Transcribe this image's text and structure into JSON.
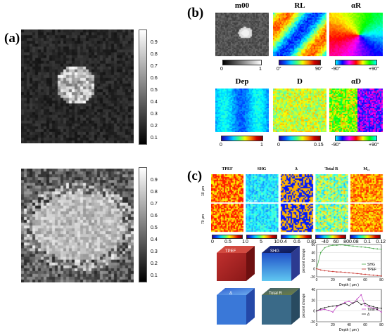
{
  "panel_a": {
    "letter": "(a)",
    "colorbar_ticks": [
      "0.9",
      "0.8",
      "0.7",
      "0.6",
      "0.5",
      "0.4",
      "0.3",
      "0.2",
      "0.1"
    ]
  },
  "panel_b": {
    "letter": "(b)",
    "maps": [
      {
        "title": "m00",
        "min": "0",
        "max": "1"
      },
      {
        "title": "RL",
        "min": "0°",
        "max": "90°"
      },
      {
        "title": "αR",
        "min": "-90°",
        "max": "+90°"
      },
      {
        "title": "Dep",
        "min": "0",
        "max": "1"
      },
      {
        "title": "D",
        "min": "0",
        "max": "0.15"
      },
      {
        "title": "αD",
        "min": "-90°",
        "max": "+90°"
      }
    ]
  },
  "panel_c": {
    "letter": "(c)",
    "columns": [
      "TPEF",
      "SHG",
      "Δ",
      "Total R",
      "M₁₁"
    ],
    "row_labels": [
      "10 μm",
      "70 μm"
    ],
    "scalebar": "20 μm",
    "colorbars": [
      {
        "ticks": [
          "0",
          "0.5",
          "1"
        ]
      },
      {
        "ticks": [
          "0",
          "5",
          "10"
        ]
      },
      {
        "ticks": [
          "0.4",
          "0.6",
          "0.8"
        ]
      },
      {
        "ticks": [
          "1",
          "-40",
          "60",
          "80"
        ]
      },
      {
        "ticks": [
          "0.08",
          "0.1",
          "0.12"
        ]
      }
    ],
    "cubes": [
      "TPEF",
      "SHG",
      "Δ",
      "Total R"
    ]
  },
  "chart_data": [
    {
      "type": "line",
      "xlabel": "Depth ( μm )",
      "ylabel": "percent change",
      "xlim": [
        0,
        80
      ],
      "ylim": [
        -20,
        60
      ],
      "xticks": [
        "0",
        "20",
        "40",
        "60",
        "80"
      ],
      "yticks": [
        "-20",
        "0",
        "20",
        "40",
        "60"
      ],
      "legend": "right",
      "series": [
        {
          "name": "SHG",
          "color": "#49a84a",
          "x": [
            0,
            5,
            10,
            15,
            20,
            25,
            30,
            35,
            40,
            45,
            50,
            55,
            60,
            65,
            70,
            75,
            80
          ],
          "y": [
            0,
            40,
            52,
            56,
            58,
            58,
            59,
            58,
            57,
            56,
            55,
            54,
            53,
            52,
            50,
            49,
            48
          ]
        },
        {
          "name": "TPEF",
          "color": "#c8342e",
          "x": [
            0,
            5,
            10,
            15,
            20,
            25,
            30,
            35,
            40,
            45,
            50,
            55,
            60,
            65,
            70,
            75,
            80
          ],
          "y": [
            0,
            -3,
            -5,
            -6,
            -7,
            -8,
            -8,
            -9,
            -10,
            -11,
            -12,
            -13,
            -14,
            -15,
            -16,
            -17,
            -18
          ]
        }
      ]
    },
    {
      "type": "line",
      "xlabel": "Depth ( μm )",
      "ylabel": "percent change",
      "xlim": [
        0,
        80
      ],
      "ylim": [
        -20,
        40
      ],
      "xticks": [
        "0",
        "20",
        "40",
        "60",
        "80"
      ],
      "yticks": [
        "-20",
        "0",
        "20",
        "40"
      ],
      "legend": "right",
      "series": [
        {
          "name": "Total R",
          "color": "#c03fc4",
          "x": [
            0,
            5,
            10,
            15,
            20,
            25,
            30,
            35,
            40,
            45,
            50,
            55,
            60,
            65,
            70,
            75,
            80
          ],
          "y": [
            0,
            2,
            3,
            1,
            -2,
            8,
            12,
            16,
            18,
            14,
            22,
            30,
            10,
            8,
            5,
            3,
            -2
          ]
        },
        {
          "name": "Δ",
          "color": "#222222",
          "x": [
            0,
            5,
            10,
            15,
            20,
            25,
            30,
            35,
            40,
            45,
            50,
            55,
            60,
            65,
            70,
            75,
            80
          ],
          "y": [
            0,
            4,
            6,
            8,
            9,
            10,
            12,
            14,
            10,
            15,
            18,
            12,
            14,
            10,
            8,
            6,
            5
          ]
        }
      ]
    }
  ]
}
